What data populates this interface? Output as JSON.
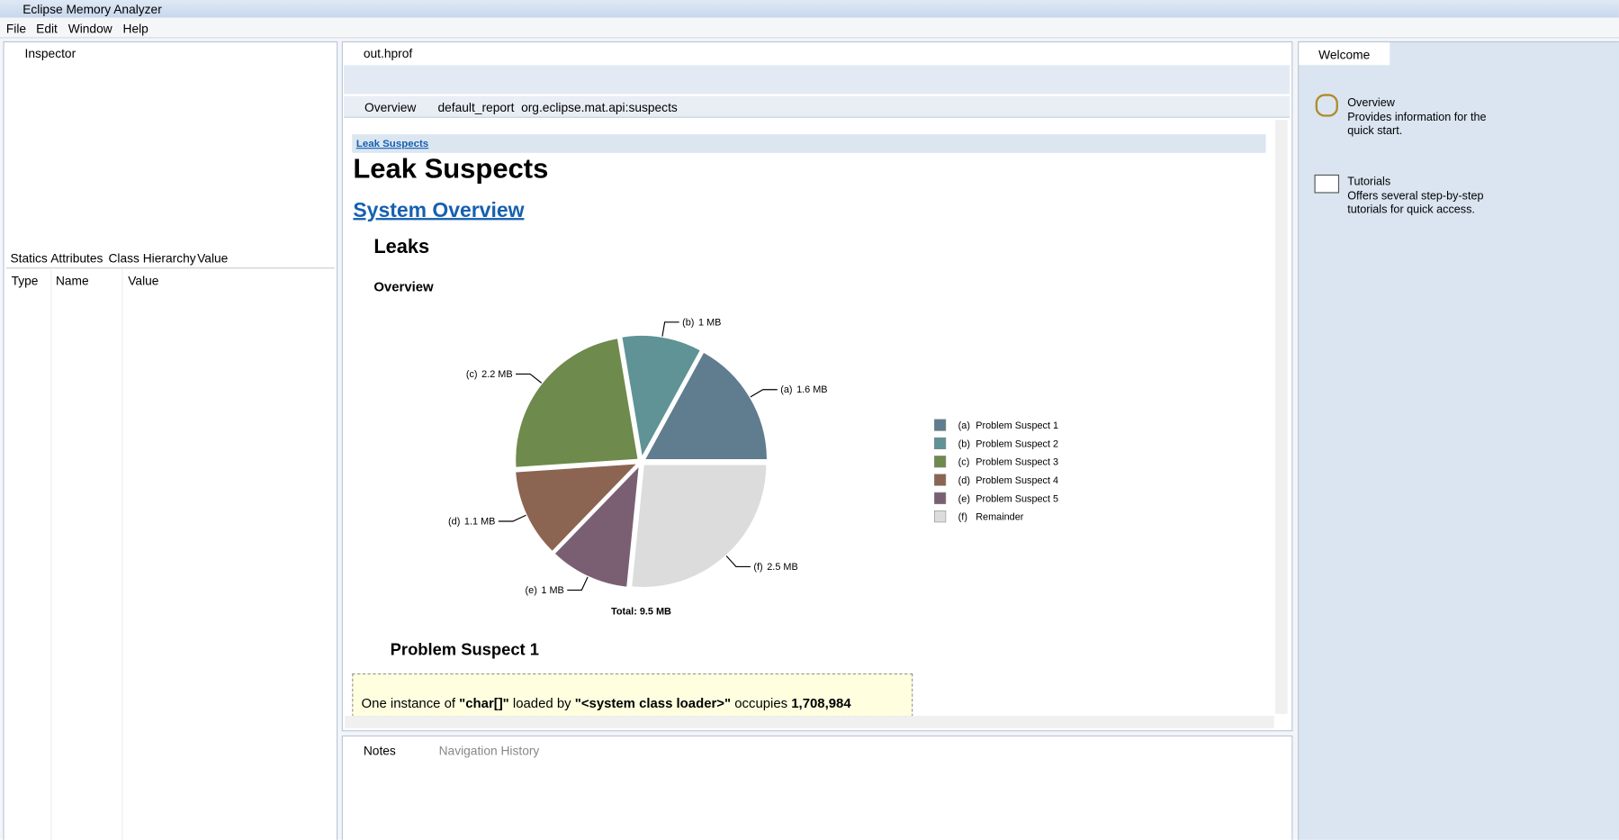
{
  "window": {
    "title": "Eclipse Memory Analyzer",
    "menu": [
      "File",
      "Edit",
      "Window",
      "Help"
    ]
  },
  "inspector": {
    "tab": "Inspector",
    "subtabs": [
      "Statics",
      "Attributes",
      "Class Hierarchy",
      "Value"
    ],
    "columns": [
      "Type",
      "Name",
      "Value"
    ]
  },
  "editor": {
    "tab": "out.hprof",
    "subtabs": [
      "Overview",
      "default_report  org.eclipse.mat.api:suspects"
    ],
    "breadcrumb": "Leak Suspects",
    "heading": "Leak Suspects",
    "link": "System Overview",
    "section": "Leaks",
    "subsection": "Overview",
    "chart_data": {
      "type": "pie",
      "letters": [
        "(a)",
        "(b)",
        "(c)",
        "(d)",
        "(e)",
        "(f)"
      ],
      "categories": [
        "Problem Suspect 1",
        "Problem Suspect 2",
        "Problem Suspect 3",
        "Problem Suspect 4",
        "Problem Suspect 5",
        "Remainder"
      ],
      "values": [
        1.6,
        1,
        2.2,
        1.1,
        1,
        2.5
      ],
      "value_labels": [
        "1.6 MB",
        "1 MB",
        "2.2 MB",
        "1.1 MB",
        "1 MB",
        "2.5 MB"
      ],
      "colors": [
        "#5f7d8e",
        "#5f9396",
        "#6e8a4c",
        "#8c6452",
        "#7a5f72",
        "#dcdcdc"
      ],
      "total": "Total: 9.5 MB"
    },
    "suspect": {
      "title": "Problem Suspect 1",
      "text": [
        "One instance of ",
        "\"char[]\"",
        " loaded by ",
        "\"<system class loader>\"",
        " occupies ",
        "1,708,984"
      ]
    }
  },
  "bottom": {
    "tabs": [
      "Notes",
      "Navigation History"
    ]
  },
  "welcome": {
    "tab": "Welcome",
    "items": [
      {
        "title": "Overview",
        "text": "Provides information for the quick start."
      },
      {
        "title": "Tutorials",
        "text": "Offers several step-by-step tutorials for quick access."
      }
    ]
  }
}
